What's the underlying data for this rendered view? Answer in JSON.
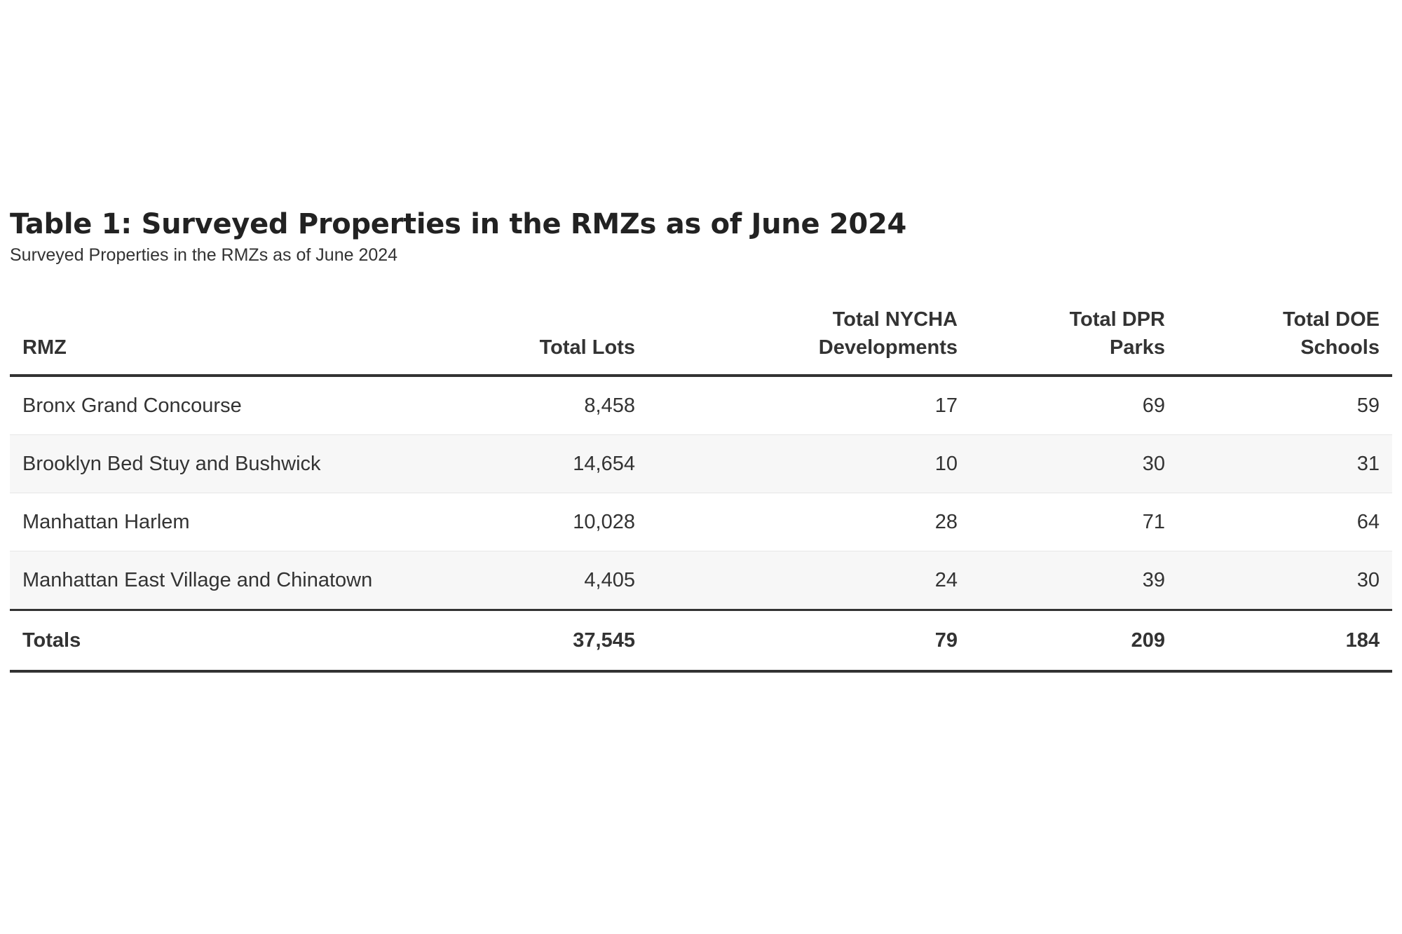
{
  "title": "Table 1: Surveyed Properties in the RMZs as of June 2024",
  "subtitle": "Surveyed Properties in the RMZs as of June 2024",
  "table": {
    "headers": {
      "rmz": "RMZ",
      "lots": "Total Lots",
      "nycha_line1": "Total NYCHA",
      "nycha_line2": "Developments",
      "dpr_line1": "Total DPR",
      "dpr_line2": "Parks",
      "doe_line1": "Total DOE",
      "doe_line2": "Schools"
    },
    "rows": [
      {
        "rmz": "Bronx Grand Concourse",
        "lots": "8,458",
        "nycha": "17",
        "dpr": "69",
        "doe": "59"
      },
      {
        "rmz": "Brooklyn Bed Stuy and Bushwick",
        "lots": "14,654",
        "nycha": "10",
        "dpr": "30",
        "doe": "31"
      },
      {
        "rmz": "Manhattan Harlem",
        "lots": "10,028",
        "nycha": "28",
        "dpr": "71",
        "doe": "64"
      },
      {
        "rmz": "Manhattan East Village and Chinatown",
        "lots": "4,405",
        "nycha": "24",
        "dpr": "39",
        "doe": "30"
      }
    ],
    "totals": {
      "label": "Totals",
      "lots": "37,545",
      "nycha": "79",
      "dpr": "209",
      "doe": "184"
    }
  }
}
